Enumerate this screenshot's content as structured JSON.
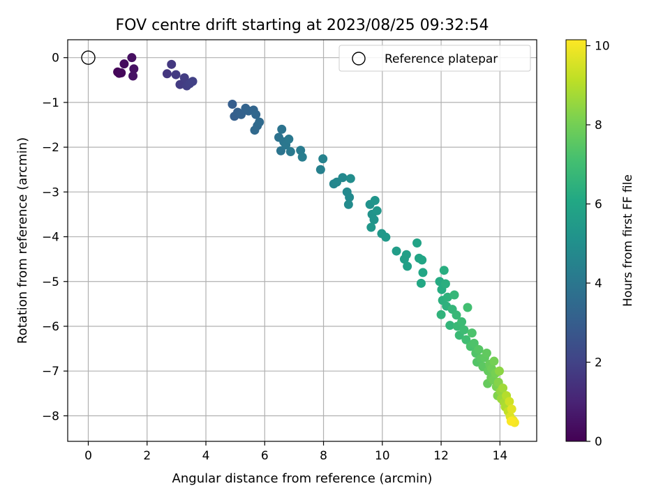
{
  "chart_data": {
    "type": "scatter",
    "title": "FOV centre drift starting at 2023/08/25 09:32:54",
    "xlabel": "Angular distance from reference (arcmin)",
    "ylabel": "Rotation from reference (arcmin)",
    "xlim": [
      -0.7,
      15.25
    ],
    "ylim": [
      -8.57,
      0.4
    ],
    "xticks": [
      "0",
      "2",
      "4",
      "6",
      "8",
      "10",
      "12",
      "14"
    ],
    "xtick_values": [
      0,
      2,
      4,
      6,
      8,
      10,
      12,
      14
    ],
    "yticks": [
      "0",
      "−1",
      "−2",
      "−3",
      "−4",
      "−5",
      "−6",
      "−7",
      "−8"
    ],
    "ytick_values": [
      0,
      -1,
      -2,
      -3,
      -4,
      -5,
      -6,
      -7,
      -8
    ],
    "grid": true,
    "legend": {
      "placement": "top-right",
      "entries": [
        "Reference platepar"
      ]
    },
    "reference_point": {
      "x": 0,
      "y": 0,
      "label": "Reference platepar"
    },
    "colorbar": {
      "label": "Hours from first FF file",
      "range": [
        0,
        10.15
      ],
      "ticks": [
        "0",
        "2",
        "4",
        "6",
        "8",
        "10"
      ],
      "tick_values": [
        0,
        2,
        4,
        6,
        8,
        10
      ],
      "colormap": "viridis"
    },
    "series": [
      {
        "color_by": "hours",
        "points": [
          {
            "x": 1.0,
            "y": -0.32,
            "h": 0.1
          },
          {
            "x": 1.05,
            "y": -0.35,
            "h": 0.15
          },
          {
            "x": 1.12,
            "y": -0.34,
            "h": 0.2
          },
          {
            "x": 1.22,
            "y": -0.14,
            "h": 0.3
          },
          {
            "x": 1.48,
            "y": 0.0,
            "h": 0.4
          },
          {
            "x": 1.55,
            "y": -0.25,
            "h": 0.45
          },
          {
            "x": 1.52,
            "y": -0.41,
            "h": 0.5
          },
          {
            "x": 2.68,
            "y": -0.36,
            "h": 1.6
          },
          {
            "x": 2.83,
            "y": -0.15,
            "h": 1.65
          },
          {
            "x": 2.98,
            "y": -0.38,
            "h": 1.7
          },
          {
            "x": 3.12,
            "y": -0.6,
            "h": 1.75
          },
          {
            "x": 3.27,
            "y": -0.45,
            "h": 1.8
          },
          {
            "x": 3.35,
            "y": -0.63,
            "h": 1.85
          },
          {
            "x": 3.45,
            "y": -0.58,
            "h": 1.9
          },
          {
            "x": 3.55,
            "y": -0.53,
            "h": 1.95
          },
          {
            "x": 4.9,
            "y": -1.04,
            "h": 3.0
          },
          {
            "x": 4.97,
            "y": -1.31,
            "h": 3.05
          },
          {
            "x": 5.08,
            "y": -1.22,
            "h": 3.1
          },
          {
            "x": 5.2,
            "y": -1.27,
            "h": 3.15
          },
          {
            "x": 5.35,
            "y": -1.13,
            "h": 3.2
          },
          {
            "x": 5.45,
            "y": -1.19,
            "h": 3.25
          },
          {
            "x": 5.62,
            "y": -1.17,
            "h": 3.3
          },
          {
            "x": 5.7,
            "y": -1.27,
            "h": 3.35
          },
          {
            "x": 5.75,
            "y": -1.52,
            "h": 3.4
          },
          {
            "x": 5.66,
            "y": -1.62,
            "h": 3.45
          },
          {
            "x": 5.82,
            "y": -1.44,
            "h": 3.5
          },
          {
            "x": 6.48,
            "y": -1.78,
            "h": 3.8
          },
          {
            "x": 6.58,
            "y": -1.6,
            "h": 3.85
          },
          {
            "x": 6.55,
            "y": -2.08,
            "h": 3.9
          },
          {
            "x": 6.65,
            "y": -1.88,
            "h": 3.95
          },
          {
            "x": 6.72,
            "y": -1.95,
            "h": 4.0
          },
          {
            "x": 6.82,
            "y": -1.82,
            "h": 4.05
          },
          {
            "x": 6.88,
            "y": -2.1,
            "h": 4.1
          },
          {
            "x": 7.22,
            "y": -2.07,
            "h": 4.2
          },
          {
            "x": 7.28,
            "y": -2.22,
            "h": 4.25
          },
          {
            "x": 7.9,
            "y": -2.5,
            "h": 4.4
          },
          {
            "x": 7.98,
            "y": -2.26,
            "h": 4.45
          },
          {
            "x": 8.35,
            "y": -2.82,
            "h": 4.6
          },
          {
            "x": 8.45,
            "y": -2.78,
            "h": 4.65
          },
          {
            "x": 8.65,
            "y": -2.68,
            "h": 4.7
          },
          {
            "x": 8.8,
            "y": -3.0,
            "h": 4.75
          },
          {
            "x": 8.88,
            "y": -3.12,
            "h": 4.8
          },
          {
            "x": 8.85,
            "y": -3.28,
            "h": 4.85
          },
          {
            "x": 8.92,
            "y": -2.7,
            "h": 4.9
          },
          {
            "x": 9.58,
            "y": -3.28,
            "h": 5.1
          },
          {
            "x": 9.65,
            "y": -3.5,
            "h": 5.15
          },
          {
            "x": 9.72,
            "y": -3.62,
            "h": 5.2
          },
          {
            "x": 9.75,
            "y": -3.19,
            "h": 5.25
          },
          {
            "x": 9.82,
            "y": -3.42,
            "h": 5.3
          },
          {
            "x": 9.62,
            "y": -3.79,
            "h": 5.35
          },
          {
            "x": 9.98,
            "y": -3.93,
            "h": 5.4
          },
          {
            "x": 10.12,
            "y": -4.01,
            "h": 5.45
          },
          {
            "x": 10.48,
            "y": -4.32,
            "h": 5.6
          },
          {
            "x": 10.75,
            "y": -4.5,
            "h": 5.65
          },
          {
            "x": 10.82,
            "y": -4.4,
            "h": 5.7
          },
          {
            "x": 10.85,
            "y": -4.66,
            "h": 5.75
          },
          {
            "x": 11.18,
            "y": -4.14,
            "h": 5.85
          },
          {
            "x": 11.25,
            "y": -4.48,
            "h": 5.9
          },
          {
            "x": 11.35,
            "y": -4.52,
            "h": 5.95
          },
          {
            "x": 11.38,
            "y": -4.8,
            "h": 6.0
          },
          {
            "x": 11.32,
            "y": -5.04,
            "h": 6.05
          },
          {
            "x": 11.95,
            "y": -5.0,
            "h": 6.2
          },
          {
            "x": 12.02,
            "y": -5.18,
            "h": 6.25
          },
          {
            "x": 12.1,
            "y": -4.75,
            "h": 6.3
          },
          {
            "x": 12.15,
            "y": -5.05,
            "h": 6.35
          },
          {
            "x": 12.05,
            "y": -5.42,
            "h": 6.4
          },
          {
            "x": 12.18,
            "y": -5.55,
            "h": 6.45
          },
          {
            "x": 12.22,
            "y": -5.35,
            "h": 6.5
          },
          {
            "x": 12.0,
            "y": -5.74,
            "h": 6.55
          },
          {
            "x": 12.3,
            "y": -5.98,
            "h": 6.6
          },
          {
            "x": 12.38,
            "y": -5.62,
            "h": 6.65
          },
          {
            "x": 12.45,
            "y": -5.3,
            "h": 6.7
          },
          {
            "x": 12.52,
            "y": -5.75,
            "h": 6.75
          },
          {
            "x": 12.55,
            "y": -6.0,
            "h": 6.8
          },
          {
            "x": 12.62,
            "y": -6.2,
            "h": 6.85
          },
          {
            "x": 12.7,
            "y": -5.9,
            "h": 6.9
          },
          {
            "x": 12.78,
            "y": -6.08,
            "h": 6.95
          },
          {
            "x": 12.85,
            "y": -6.3,
            "h": 7.0
          },
          {
            "x": 12.9,
            "y": -5.58,
            "h": 7.05
          },
          {
            "x": 13.0,
            "y": -6.45,
            "h": 7.2
          },
          {
            "x": 13.05,
            "y": -6.15,
            "h": 7.25
          },
          {
            "x": 13.12,
            "y": -6.38,
            "h": 7.3
          },
          {
            "x": 13.18,
            "y": -6.6,
            "h": 7.35
          },
          {
            "x": 13.22,
            "y": -6.8,
            "h": 7.4
          },
          {
            "x": 13.28,
            "y": -6.52,
            "h": 7.45
          },
          {
            "x": 13.35,
            "y": -6.72,
            "h": 7.5
          },
          {
            "x": 13.42,
            "y": -6.9,
            "h": 7.55
          },
          {
            "x": 13.48,
            "y": -6.7,
            "h": 7.6
          },
          {
            "x": 13.55,
            "y": -6.6,
            "h": 7.65
          },
          {
            "x": 13.6,
            "y": -7.0,
            "h": 7.7
          },
          {
            "x": 13.58,
            "y": -7.28,
            "h": 7.75
          },
          {
            "x": 13.65,
            "y": -6.85,
            "h": 7.8
          },
          {
            "x": 13.7,
            "y": -7.15,
            "h": 7.85
          },
          {
            "x": 13.72,
            "y": -6.95,
            "h": 7.9
          },
          {
            "x": 13.78,
            "y": -7.2,
            "h": 7.95
          },
          {
            "x": 13.8,
            "y": -6.78,
            "h": 8.0
          },
          {
            "x": 13.85,
            "y": -7.05,
            "h": 8.05
          },
          {
            "x": 13.88,
            "y": -7.35,
            "h": 8.1
          },
          {
            "x": 13.92,
            "y": -7.55,
            "h": 8.2
          },
          {
            "x": 13.95,
            "y": -7.25,
            "h": 8.3
          },
          {
            "x": 13.98,
            "y": -7.0,
            "h": 8.4
          },
          {
            "x": 14.02,
            "y": -7.45,
            "h": 8.5
          },
          {
            "x": 14.05,
            "y": -7.62,
            "h": 8.6
          },
          {
            "x": 14.1,
            "y": -7.38,
            "h": 8.7
          },
          {
            "x": 14.15,
            "y": -7.7,
            "h": 8.8
          },
          {
            "x": 14.18,
            "y": -7.8,
            "h": 8.9
          },
          {
            "x": 14.22,
            "y": -7.55,
            "h": 9.0
          },
          {
            "x": 14.28,
            "y": -7.9,
            "h": 9.2
          },
          {
            "x": 14.32,
            "y": -7.68,
            "h": 9.4
          },
          {
            "x": 14.35,
            "y": -8.02,
            "h": 9.6
          },
          {
            "x": 14.4,
            "y": -7.85,
            "h": 9.7
          },
          {
            "x": 14.45,
            "y": -8.1,
            "h": 9.85
          },
          {
            "x": 14.5,
            "y": -8.15,
            "h": 10.0
          },
          {
            "x": 14.38,
            "y": -8.12,
            "h": 10.1
          }
        ]
      }
    ]
  }
}
